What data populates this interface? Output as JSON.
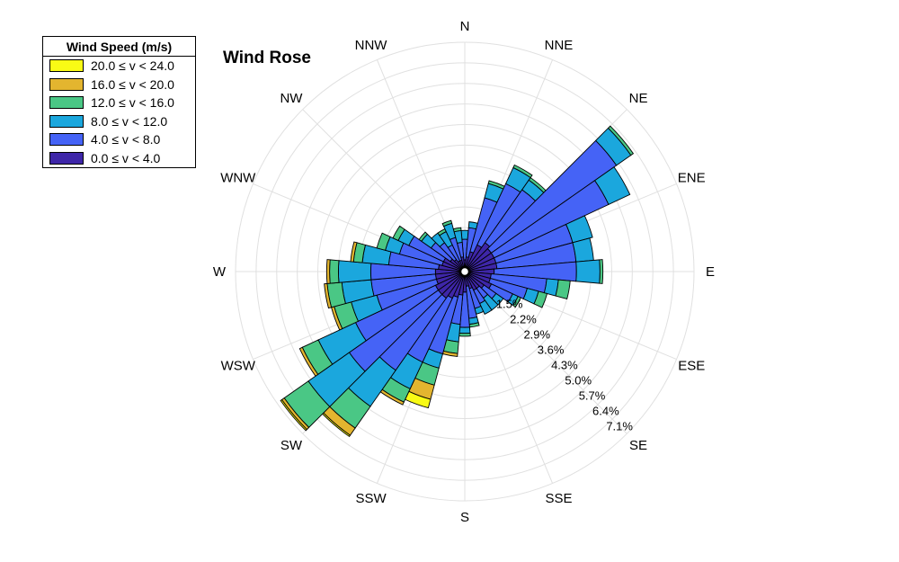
{
  "chart_data": {
    "type": "windrose",
    "title": "Wind Rose",
    "legend_title": "Wind Speed (m/s)",
    "legend_placement": "top-left",
    "grid": true,
    "directions": [
      "N",
      "NNE",
      "NE",
      "ENE",
      "E",
      "ESE",
      "SE",
      "SSE",
      "S",
      "SSW",
      "SW",
      "WSW",
      "W",
      "WNW",
      "NW",
      "NNW"
    ],
    "r_ticks": [
      "1.5%",
      "2.2%",
      "2.9%",
      "3.6%",
      "4.3%",
      "5.0%",
      "5.7%",
      "6.4%",
      "7.1%"
    ],
    "r_tick_values": [
      1.5,
      2.2,
      2.9,
      3.6,
      4.3,
      5.0,
      5.7,
      6.4,
      7.1
    ],
    "r_max": 7.8,
    "bin_count": 36,
    "bin_width_deg": 10,
    "speed_bins": [
      {
        "label": "0.0 ≤ v < 4.0",
        "color": "#3e26a8"
      },
      {
        "label": "4.0 ≤ v < 8.0",
        "color": "#4563f6"
      },
      {
        "label": "8.0 ≤ v < 12.0",
        "color": "#1ba7dd"
      },
      {
        "label": "12.0 ≤ v < 16.0",
        "color": "#4ac785"
      },
      {
        "label": "16.0 ≤ v < 20.0",
        "color": "#e3b52f"
      },
      {
        "label": "20.0 ≤ v < 24.0",
        "color": "#f9fb15"
      }
    ],
    "bins": [
      {
        "dir": 0,
        "values": [
          0.3,
          0.7,
          0.3,
          0.0,
          0,
          0
        ]
      },
      {
        "dir": 10,
        "values": [
          0.4,
          1.0,
          0.2,
          0.0,
          0,
          0
        ]
      },
      {
        "dir": 20,
        "values": [
          0.6,
          1.9,
          0.5,
          0.1,
          0,
          0
        ]
      },
      {
        "dir": 30,
        "values": [
          0.9,
          2.3,
          0.6,
          0.1,
          0,
          0
        ]
      },
      {
        "dir": 40,
        "values": [
          1.1,
          2.2,
          0.4,
          0.1,
          0,
          0
        ]
      },
      {
        "dir": 50,
        "values": [
          1.0,
          5.2,
          0.6,
          0.1,
          0,
          0
        ]
      },
      {
        "dir": 60,
        "values": [
          1.0,
          4.3,
          0.8,
          0,
          0,
          0
        ]
      },
      {
        "dir": 70,
        "values": [
          1.0,
          2.7,
          0.7,
          0,
          0,
          0
        ]
      },
      {
        "dir": 80,
        "values": [
          1.0,
          2.7,
          0.6,
          0,
          0,
          0
        ]
      },
      {
        "dir": 90,
        "values": [
          0.9,
          2.8,
          0.8,
          0.1,
          0,
          0
        ]
      },
      {
        "dir": 100,
        "values": [
          0.8,
          1.9,
          0.4,
          0.4,
          0,
          0
        ]
      },
      {
        "dir": 110,
        "values": [
          0.8,
          1.3,
          0.4,
          0.3,
          0,
          0
        ]
      },
      {
        "dir": 120,
        "values": [
          0.9,
          0.8,
          0.2,
          0.1,
          0,
          0
        ]
      },
      {
        "dir": 130,
        "values": [
          0.7,
          0.5,
          0.3,
          0,
          0,
          0
        ]
      },
      {
        "dir": 140,
        "values": [
          0.6,
          0.4,
          0.5,
          0,
          0,
          0
        ]
      },
      {
        "dir": 150,
        "values": [
          0.6,
          0.5,
          0.4,
          0,
          0,
          0
        ]
      },
      {
        "dir": 160,
        "values": [
          0.5,
          0.7,
          0.2,
          0,
          0,
          0
        ]
      },
      {
        "dir": 170,
        "values": [
          0.4,
          1.1,
          0.2,
          0.1,
          0,
          0
        ]
      },
      {
        "dir": 180,
        "values": [
          0.6,
          1.2,
          0.2,
          0.1,
          0,
          0
        ]
      },
      {
        "dir": 190,
        "values": [
          0.7,
          1.0,
          0.6,
          0.4,
          0.1,
          0
        ]
      },
      {
        "dir": 200,
        "values": [
          0.8,
          2.0,
          0.5,
          0.6,
          0.5,
          0.3
        ]
      },
      {
        "dir": 210,
        "values": [
          0.9,
          2.4,
          1.0,
          0.5,
          0.1,
          0
        ]
      },
      {
        "dir": 220,
        "values": [
          1.0,
          3.0,
          1.5,
          0.9,
          0.3,
          0.05
        ]
      },
      {
        "dir": 230,
        "values": [
          1.0,
          3.7,
          1.7,
          1.0,
          0.1,
          0.05
        ]
      },
      {
        "dir": 240,
        "values": [
          1.0,
          3.0,
          1.4,
          0.6,
          0.1,
          0
        ]
      },
      {
        "dir": 250,
        "values": [
          0.9,
          2.1,
          0.9,
          0.6,
          0.1,
          0
        ]
      },
      {
        "dir": 260,
        "values": [
          0.9,
          2.2,
          1.0,
          0.5,
          0.1,
          0
        ]
      },
      {
        "dir": 270,
        "values": [
          0.9,
          2.2,
          1.1,
          0.3,
          0.1,
          0
        ]
      },
      {
        "dir": 280,
        "values": [
          0.8,
          1.7,
          0.9,
          0.3,
          0.1,
          0
        ]
      },
      {
        "dir": 290,
        "values": [
          0.7,
          1.5,
          0.5,
          0.3,
          0,
          0
        ]
      },
      {
        "dir": 300,
        "values": [
          0.7,
          1.3,
          0.4,
          0.2,
          0,
          0
        ]
      },
      {
        "dir": 310,
        "values": [
          0.5,
          0.8,
          0.4,
          0.1,
          0,
          0
        ]
      },
      {
        "dir": 320,
        "values": [
          0.4,
          0.7,
          0.4,
          0.0,
          0,
          0
        ]
      },
      {
        "dir": 330,
        "values": [
          0.3,
          0.6,
          0.5,
          0.1,
          0,
          0
        ]
      },
      {
        "dir": 340,
        "values": [
          0.3,
          0.8,
          0.5,
          0.1,
          0,
          0
        ]
      },
      {
        "dir": 350,
        "values": [
          0.4,
          0.5,
          0.4,
          0.1,
          0,
          0
        ]
      }
    ]
  }
}
